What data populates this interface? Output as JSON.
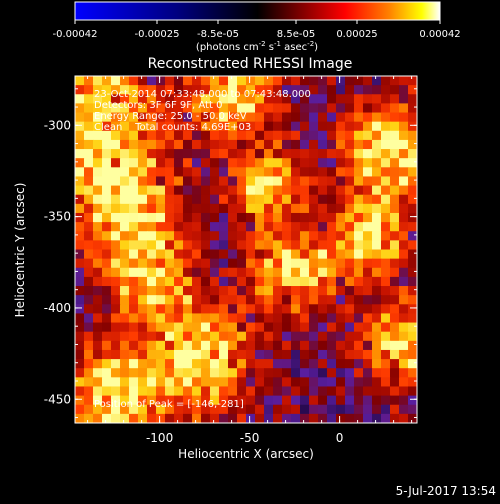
{
  "colorbar": {
    "ticks": [
      "-0.00042",
      "-0.00025",
      "-8.5e-05",
      "8.5e-05",
      "0.00025",
      "0.00042"
    ],
    "unit_main": "(photons cm",
    "unit_sup1": "-2",
    "unit_mid": " s",
    "unit_sup2": "-1",
    "unit_after": " asec",
    "unit_sup3": "-2",
    "unit_close": ")"
  },
  "plot": {
    "title": "Reconstructed RHESSI Image",
    "xlabel": "Heliocentric X (arcsec)",
    "ylabel": "Heliocentric Y (arcsec)",
    "xticks": [
      "-100",
      "-50",
      "0"
    ],
    "yticks": [
      "-300",
      "-350",
      "-400",
      "-450"
    ],
    "xlim": [
      -147,
      43
    ],
    "ylim": [
      -463,
      -273
    ]
  },
  "annotations": {
    "time_range": "23-Oct-2014 07:33:48.000 to 07:43:48.000",
    "detectors": "Detectors: 3F 6F 9F, Att 0",
    "energy": "Energy Range: 25.0 - 50.0 keV",
    "clean": "Clean    Total counts: 4.69E+03",
    "peak": "Position of Peak = [-146,-281]"
  },
  "footer": {
    "date": "5-Jul-2017 13:54"
  },
  "colors": {
    "colormap": [
      "#0000ff",
      "#000080",
      "#000000",
      "#800000",
      "#ff0000",
      "#ff8000",
      "#ffff00",
      "#ffffff"
    ]
  }
}
